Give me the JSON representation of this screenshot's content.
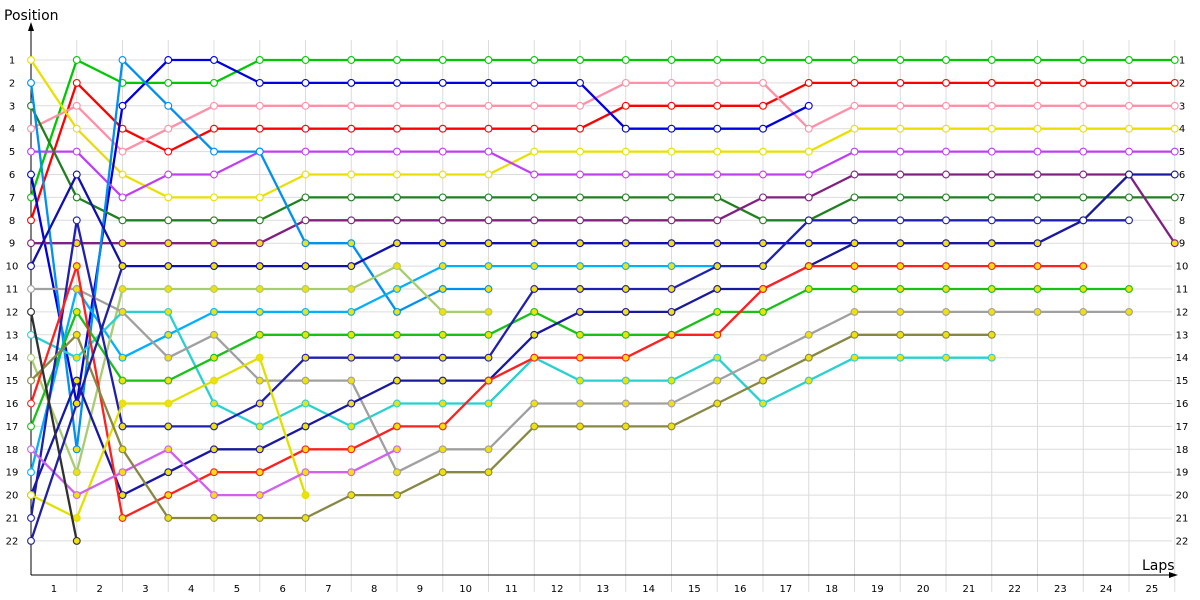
{
  "chart_data": {
    "type": "line",
    "title": "",
    "xlabel": "Laps",
    "ylabel": "Position",
    "x_ticks": [
      "1",
      "2",
      "3",
      "4",
      "5",
      "6",
      "7",
      "8",
      "9",
      "10",
      "11",
      "12",
      "13",
      "14",
      "15",
      "16",
      "17",
      "18",
      "19",
      "20",
      "21",
      "22",
      "23",
      "24",
      "25"
    ],
    "y_ticks": [
      "1",
      "2",
      "3",
      "4",
      "5",
      "6",
      "7",
      "8",
      "9",
      "10",
      "11",
      "12",
      "13",
      "14",
      "15",
      "16",
      "17",
      "18",
      "19",
      "20",
      "21",
      "22"
    ],
    "y_inverted": true,
    "grid": true,
    "legend": "none",
    "series": [
      {
        "color": "#00c800",
        "values": [
          7,
          1,
          2,
          2,
          2,
          1,
          1,
          1,
          1,
          1,
          1,
          1,
          1,
          1,
          1,
          1,
          1,
          1,
          1,
          1,
          1,
          1,
          1,
          1,
          1,
          1
        ]
      },
      {
        "color": "#ff0000",
        "values": [
          8,
          2,
          4,
          5,
          4,
          4,
          4,
          4,
          4,
          4,
          4,
          4,
          4,
          3,
          3,
          3,
          3,
          2,
          2,
          2,
          2,
          2,
          2,
          2,
          2,
          2
        ]
      },
      {
        "color": "#ff90a8",
        "values": [
          4,
          3,
          5,
          4,
          3,
          3,
          3,
          3,
          3,
          3,
          3,
          3,
          3,
          2,
          2,
          2,
          2,
          4,
          3,
          3,
          3,
          3,
          3,
          3,
          3,
          3
        ]
      },
      {
        "color": "#e8e000",
        "values": [
          1,
          4,
          6,
          7,
          7,
          7,
          6,
          6,
          6,
          6,
          6,
          5,
          5,
          5,
          5,
          5,
          5,
          5,
          4,
          4,
          4,
          4,
          4,
          4,
          4,
          4
        ]
      },
      {
        "color": "#0000e0",
        "values": [
          6,
          16,
          3,
          1,
          1,
          2,
          2,
          2,
          2,
          2,
          2,
          2,
          2,
          4,
          4,
          4,
          4,
          3
        ]
      },
      {
        "color": "#c040f0",
        "values": [
          5,
          5,
          7,
          6,
          6,
          5,
          5,
          5,
          5,
          5,
          5,
          6,
          6,
          6,
          6,
          6,
          6,
          6,
          5,
          5,
          5,
          5,
          5,
          5,
          5,
          5
        ]
      },
      {
        "color": "#208020",
        "values": [
          3,
          7,
          8,
          8,
          8,
          8,
          7,
          7,
          7,
          7,
          7,
          7,
          7,
          7,
          7,
          7,
          8,
          8,
          7,
          7,
          7,
          7,
          7,
          7,
          7,
          7
        ]
      },
      {
        "color": "#802080",
        "values": [
          9,
          9,
          9,
          9,
          9,
          9,
          8,
          8,
          8,
          8,
          8,
          8,
          8,
          8,
          8,
          8,
          7,
          7,
          6,
          6,
          6,
          6,
          6,
          6,
          6,
          9
        ]
      },
      {
        "color": "#0090f0",
        "values": [
          2,
          18,
          1,
          3,
          5,
          5,
          9,
          9,
          12,
          11,
          11
        ]
      },
      {
        "color": "#1010b0",
        "values": [
          10,
          6,
          10,
          10,
          10,
          10,
          10,
          10,
          9,
          9,
          9,
          9,
          9,
          9,
          9,
          9,
          9,
          9,
          9
        ]
      },
      {
        "color": "#00b0ff",
        "values": [
          19,
          11,
          14,
          13,
          12,
          12,
          12,
          12,
          11,
          10,
          10,
          10,
          10,
          10,
          10,
          10
        ]
      },
      {
        "color": "#a8cc70",
        "values": [
          14,
          19,
          11,
          11,
          11,
          11,
          11,
          11,
          10,
          12,
          12
        ]
      },
      {
        "color": "#28d0d0",
        "values": [
          13,
          14,
          12,
          12,
          16,
          17,
          16,
          17,
          16,
          16,
          16,
          14,
          15,
          15,
          15,
          14,
          16,
          15,
          14,
          14,
          14,
          14
        ]
      },
      {
        "color": "#18c018",
        "values": [
          17,
          12,
          15,
          15,
          14,
          13,
          13,
          13,
          13,
          13,
          13,
          12,
          13,
          13,
          13,
          12,
          12,
          11,
          11,
          11,
          11,
          11,
          11,
          11,
          11
        ]
      },
      {
        "color": "#a0a0a0",
        "values": [
          11,
          11,
          12,
          14,
          13,
          15,
          15,
          15,
          19,
          18,
          18,
          16,
          16,
          16,
          16,
          15,
          14,
          13,
          12,
          12,
          12,
          12,
          12,
          12,
          12
        ]
      },
      {
        "color": "#2020b0",
        "values": [
          21,
          8,
          17,
          17,
          17,
          16,
          14,
          14,
          14,
          14,
          14,
          11,
          11,
          11,
          11,
          10,
          10,
          8,
          8,
          8,
          8,
          8,
          8,
          8,
          8
        ]
      },
      {
        "color": "#1818a0",
        "values": [
          20,
          15,
          20,
          19,
          18,
          18,
          17,
          16,
          15,
          15,
          15,
          13,
          12,
          12,
          12,
          11,
          11,
          10,
          9,
          9,
          9,
          9,
          9,
          8,
          6,
          6
        ]
      },
      {
        "color": "#ff2020",
        "values": [
          16,
          10,
          21,
          20,
          19,
          19,
          18,
          18,
          17,
          17,
          15,
          14,
          14,
          14,
          13,
          13,
          11,
          10,
          10,
          10,
          10,
          10,
          10,
          10
        ]
      },
      {
        "color": "#e0e000",
        "values": [
          20,
          21,
          16,
          16,
          15,
          14,
          20
        ]
      },
      {
        "color": "#d060f0",
        "values": [
          18,
          20,
          19,
          18,
          20,
          20,
          19,
          19,
          18
        ]
      },
      {
        "color": "#888844",
        "values": [
          15,
          13,
          18,
          21,
          21,
          21,
          21,
          20,
          20,
          19,
          19,
          17,
          17,
          17,
          17,
          16,
          15,
          14,
          13,
          13,
          13,
          13
        ]
      },
      {
        "color": "#303030",
        "values": [
          12,
          22
        ]
      },
      {
        "color": "#2020a0",
        "values": [
          22,
          16,
          10
        ]
      }
    ]
  }
}
